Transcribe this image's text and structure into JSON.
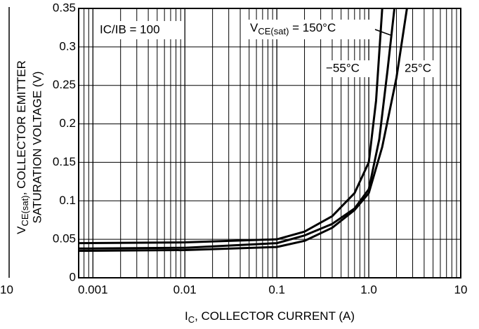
{
  "chart_data": {
    "type": "line",
    "y_label": {
      "main": "V",
      "sub": "CE(sat)",
      "rest": ", COLLECTOR EMITTER",
      "line2": "SATURATION VOLTAGE (V)"
    },
    "x_label": {
      "main": "I",
      "sub": "C",
      "rest": ", COLLECTOR CURRENT (A)"
    },
    "annotations": {
      "ratio": "IC/IB = 100",
      "hot": {
        "main": "V",
        "sub": "CE(sat)",
        "rest": " = 150°C"
      },
      "cold": "−55°C",
      "room": "25°C"
    },
    "fragment_label": "10",
    "log_x": true,
    "grid": true,
    "color": "#000000",
    "xlim": [
      0.0007,
      10
    ],
    "xticks": [
      0.001,
      0.01,
      0.1,
      {
        "value": 1,
        "label": "1.0"
      },
      10
    ],
    "ylim": [
      0,
      0.35
    ],
    "yticks": [
      0,
      0.05,
      0.1,
      0.15,
      0.2,
      0.25,
      0.3,
      0.35
    ],
    "series": [
      {
        "name": "150°C",
        "x": [
          0.0007,
          0.01,
          0.1,
          0.2,
          0.4,
          0.7,
          1,
          1.2,
          1.4
        ],
        "values": [
          0.045,
          0.046,
          0.05,
          0.06,
          0.08,
          0.11,
          0.15,
          0.23,
          0.35
        ]
      },
      {
        "name": "−55°C",
        "x": [
          0.0007,
          0.01,
          0.1,
          0.2,
          0.4,
          0.7,
          1,
          1.3,
          1.6,
          1.9
        ],
        "values": [
          0.038,
          0.039,
          0.045,
          0.055,
          0.07,
          0.09,
          0.115,
          0.18,
          0.27,
          0.35
        ]
      },
      {
        "name": "25°C",
        "x": [
          0.0007,
          0.01,
          0.1,
          0.2,
          0.4,
          0.7,
          1,
          1.4,
          2,
          2.6
        ],
        "values": [
          0.035,
          0.036,
          0.04,
          0.048,
          0.065,
          0.088,
          0.11,
          0.17,
          0.26,
          0.35
        ]
      }
    ]
  }
}
